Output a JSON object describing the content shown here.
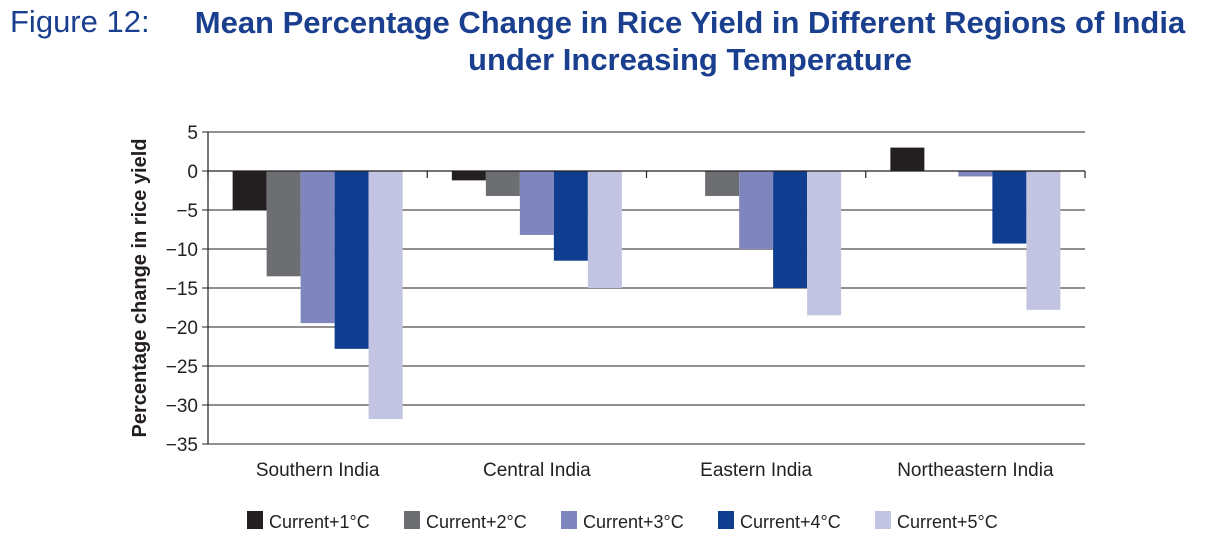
{
  "figure_label": "Figure 12:",
  "title_line1": "Mean Percentage Change in Rice Yield in Different Regions of India",
  "title_line2": "under Increasing Temperature",
  "chart_data": {
    "type": "bar",
    "title": "Mean Percentage Change in Rice Yield in Different Regions of India under Increasing Temperature",
    "xlabel": "",
    "ylabel": "Percentage change in rice yield",
    "ylim": [
      -35,
      5
    ],
    "yticks": [
      5,
      0,
      -5,
      -10,
      -15,
      -20,
      -25,
      -30,
      -35
    ],
    "categories": [
      "Southern India",
      "Central India",
      "Eastern India",
      "Northeastern India"
    ],
    "series": [
      {
        "name": "Current+1°C",
        "color": "#231f20",
        "values": [
          -5.0,
          -1.2,
          0.0,
          3.0
        ]
      },
      {
        "name": "Current+2°C",
        "color": "#6d6e71",
        "values": [
          -13.5,
          -3.2,
          -3.2,
          0.0
        ]
      },
      {
        "name": "Current+3°C",
        "color": "#7f86be",
        "values": [
          -19.5,
          -8.2,
          -10.0,
          -0.7
        ]
      },
      {
        "name": "Current+4°C",
        "color": "#0f3d8f",
        "values": [
          -22.8,
          -11.5,
          -15.0,
          -9.3
        ]
      },
      {
        "name": "Current+5°C",
        "color": "#c2c4e1",
        "values": [
          -31.8,
          -15.0,
          -18.5,
          -17.8
        ]
      }
    ],
    "grid": true,
    "legend_position": "bottom"
  }
}
